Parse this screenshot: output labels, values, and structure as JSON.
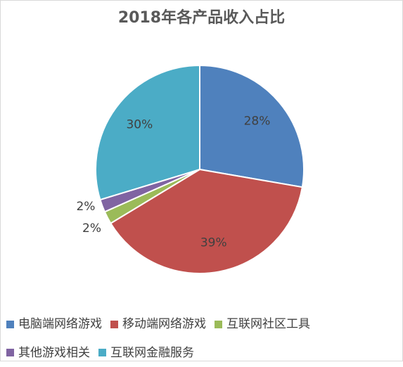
{
  "chart_data": {
    "type": "pie",
    "title": "2018年各产品收入占比",
    "categories": [
      "电脑端网络游戏",
      "移动端网络游戏",
      "互联网社区工具",
      "其他游戏相关",
      "互联网金融服务"
    ],
    "values": [
      28,
      39,
      2,
      2,
      30
    ],
    "labels": [
      "28%",
      "39%",
      "2%",
      "2%",
      "30%"
    ],
    "colors": [
      "#4F81BD",
      "#C0504D",
      "#9BBB59",
      "#8064A2",
      "#4BACC6"
    ],
    "legend_position": "bottom"
  }
}
